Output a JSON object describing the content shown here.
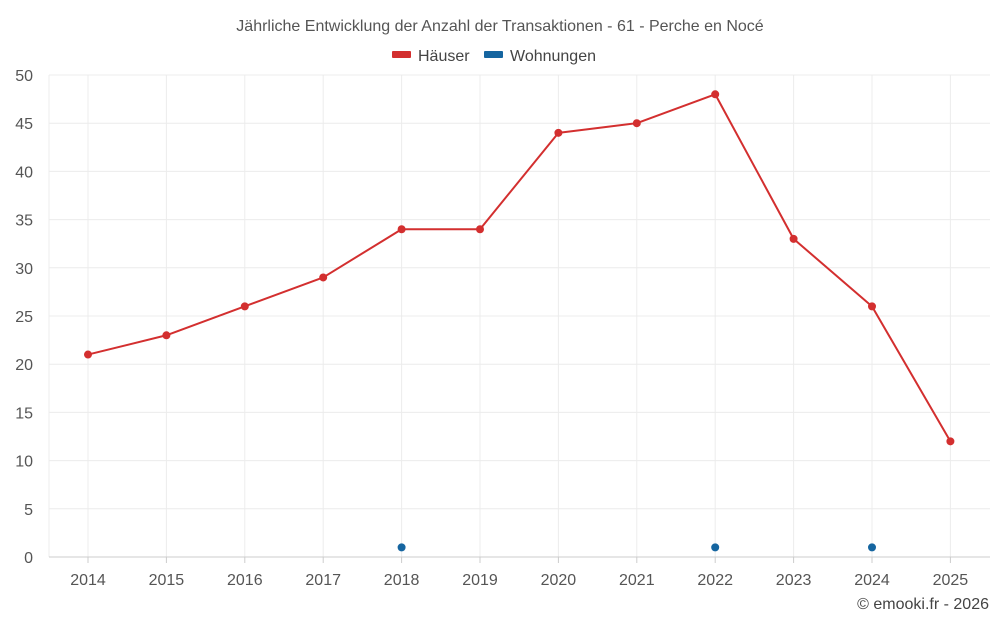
{
  "chart_data": {
    "type": "line",
    "title": "Jährliche Entwicklung der Anzahl der Transaktionen - 61 - Perche en Nocé",
    "categories": [
      "2014",
      "2015",
      "2016",
      "2017",
      "2018",
      "2019",
      "2020",
      "2021",
      "2022",
      "2023",
      "2024",
      "2025"
    ],
    "ylim": [
      0,
      50
    ],
    "yticks": [
      "0",
      "5",
      "10",
      "15",
      "20",
      "25",
      "30",
      "35",
      "40",
      "45",
      "50"
    ],
    "xlabel": "",
    "ylabel": "",
    "grid": true,
    "legend_position": "top-center",
    "series": [
      {
        "name": "Häuser",
        "color": "#d32f2f",
        "values": [
          21,
          23,
          26,
          29,
          34,
          34,
          44,
          45,
          48,
          33,
          26,
          12
        ]
      },
      {
        "name": "Wohnungen",
        "color": "#1565a0",
        "values": [
          null,
          null,
          null,
          null,
          1,
          null,
          null,
          null,
          1,
          null,
          1,
          null
        ]
      }
    ]
  },
  "footer": {
    "credit": "© emooki.fr - 2026"
  }
}
